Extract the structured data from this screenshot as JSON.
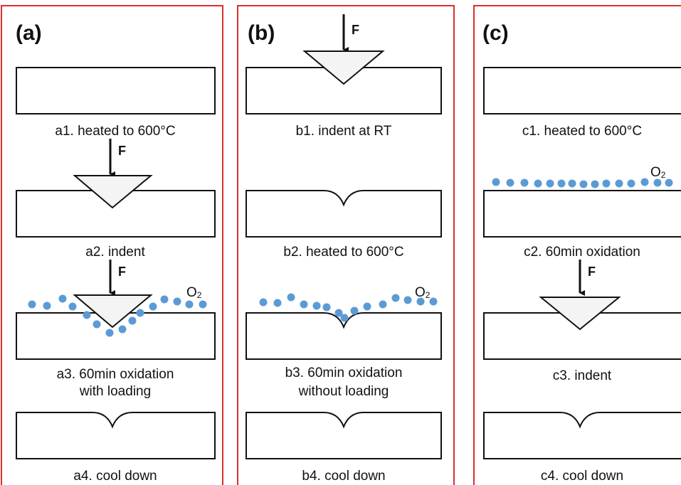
{
  "panels": [
    {
      "label": "(a)",
      "steps": [
        {
          "caption": [
            "a1. heated to 600°C"
          ]
        },
        {
          "caption": [
            "a2. indent"
          ]
        },
        {
          "caption": [
            "a3. 60min oxidation",
            "with loading"
          ]
        },
        {
          "caption": [
            "a4. cool down"
          ]
        }
      ]
    },
    {
      "label": "(b)",
      "steps": [
        {
          "caption": [
            "b1. indent at RT"
          ]
        },
        {
          "caption": [
            "b2.  heated to 600°C"
          ]
        },
        {
          "caption": [
            "b3. 60min oxidation",
            "without loading"
          ]
        },
        {
          "caption": [
            "b4. cool down"
          ]
        }
      ]
    },
    {
      "label": "(c)",
      "steps": [
        {
          "caption": [
            "c1. heated to 600°C"
          ]
        },
        {
          "caption": [
            "c2. 60min oxidation"
          ]
        },
        {
          "caption": [
            "c3. indent"
          ]
        },
        {
          "caption": [
            "c4. cool down"
          ]
        }
      ]
    }
  ],
  "force": "F",
  "oxygen": {
    "symbol": "O",
    "subscript": "2"
  }
}
